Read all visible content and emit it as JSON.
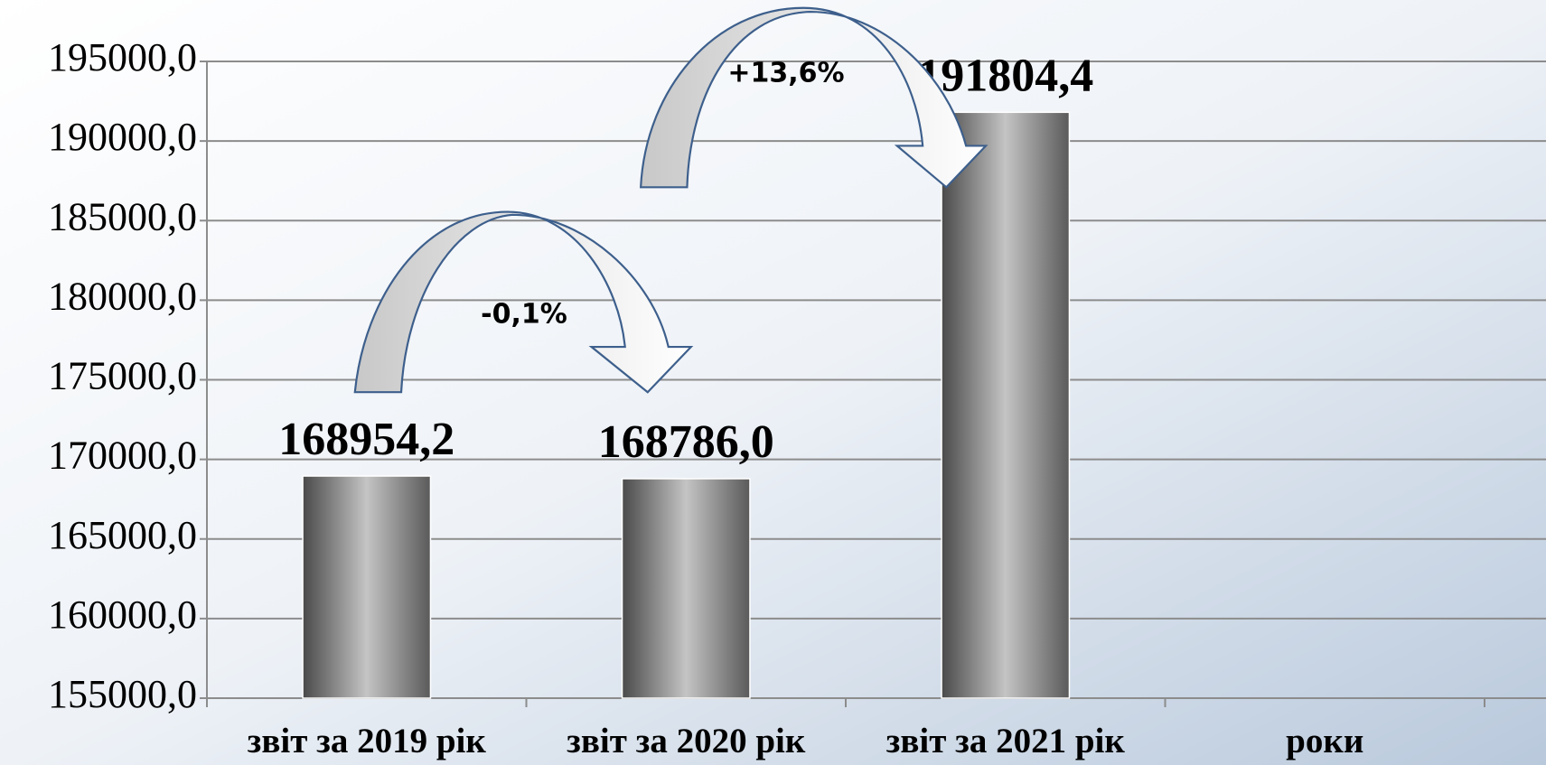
{
  "chart_data": {
    "type": "bar",
    "categories": [
      "звіт за 2019 рік",
      "звіт за 2020 рік",
      "звіт за 2021 рік",
      "роки"
    ],
    "values": [
      168954.2,
      168786.0,
      191804.4,
      null
    ],
    "value_labels": [
      "168954,2",
      "168786,0",
      "191804,4",
      null
    ],
    "color": "#8a8a8a",
    "ylim": [
      155000,
      195000
    ],
    "yticks": [
      {
        "value": 155000,
        "label": "155000,0"
      },
      {
        "value": 160000,
        "label": "160000,0"
      },
      {
        "value": 165000,
        "label": "165000,0"
      },
      {
        "value": 170000,
        "label": "170000,0"
      },
      {
        "value": 175000,
        "label": "175000,0"
      },
      {
        "value": 180000,
        "label": "180000,0"
      },
      {
        "value": 185000,
        "label": "185000,0"
      },
      {
        "value": 190000,
        "label": "190000,0"
      },
      {
        "value": 195000,
        "label": "195000,0"
      }
    ],
    "grid": true,
    "annotations": [
      "-0,1%",
      "+13,6%"
    ]
  }
}
